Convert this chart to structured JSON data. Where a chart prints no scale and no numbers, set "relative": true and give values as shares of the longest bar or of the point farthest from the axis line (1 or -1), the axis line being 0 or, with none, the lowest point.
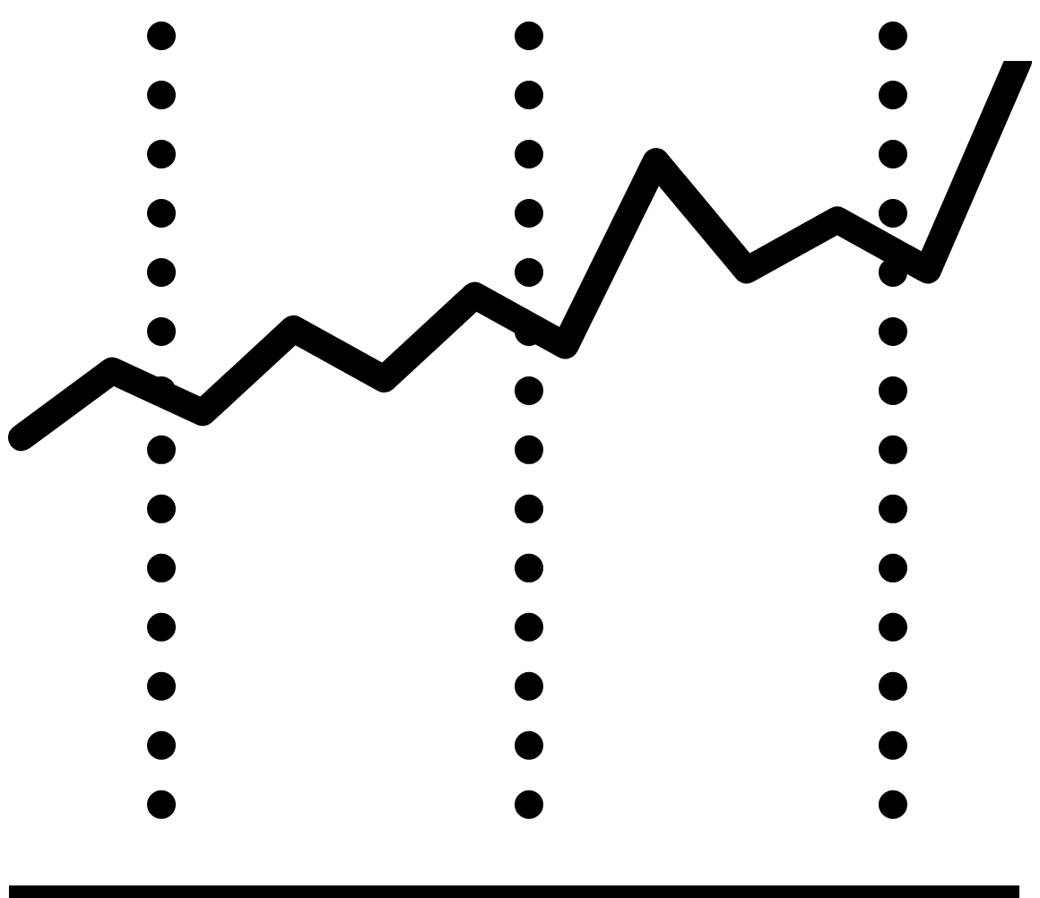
{
  "chart_data": {
    "type": "line",
    "relative": true,
    "categories": [
      null,
      null,
      null,
      null,
      null,
      null,
      null,
      null,
      null,
      null,
      null,
      null
    ],
    "series": [
      {
        "color": "#000000",
        "values": [
          0.55,
          0.63,
          0.58,
          0.68,
          0.62,
          0.72,
          0.66,
          0.88,
          0.75,
          0.81,
          0.75,
          1.0
        ]
      }
    ],
    "marker": "none",
    "tick_labels": false,
    "legend": false
  }
}
